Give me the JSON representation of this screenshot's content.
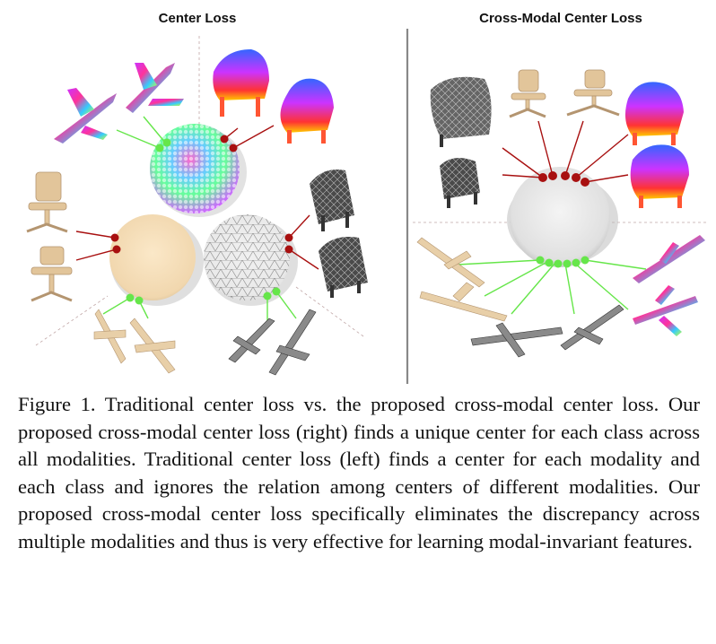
{
  "figure": {
    "left_title": "Center Loss",
    "right_title": "Cross-Modal Center Loss"
  },
  "caption": {
    "label": "Figure 1.",
    "text": "Traditional center loss vs.  the proposed cross-modal center loss.  Our proposed cross-modal center loss (right) finds a unique center for each class across all modalities. Traditional center loss (left) finds a center for each modality and each class and ignores the relation among centers of different modalities.  Our proposed cross-modal center loss specifically eliminates the discrepancy across multiple modalities and thus is very effective for learning modal-invariant features."
  },
  "colors": {
    "red_dot": "#a81010",
    "green_dot": "#66e64a",
    "divider": "#888888",
    "beige": "#f3dcb8",
    "gray_sphere": "#e2e2e2"
  }
}
